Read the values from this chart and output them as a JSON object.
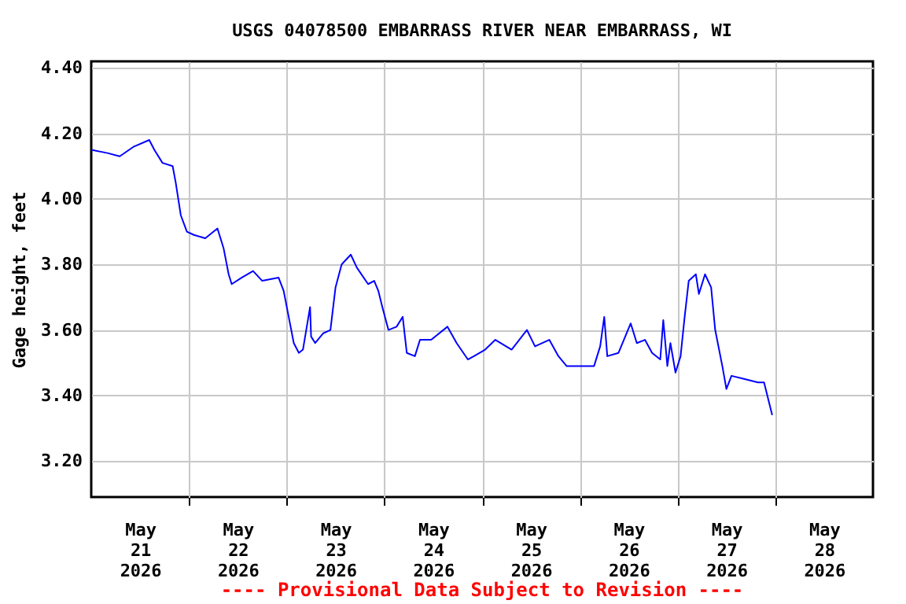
{
  "chart_data": {
    "type": "line",
    "title": "USGS 04078500 EMBARRASS RIVER NEAR EMBARRASS, WI",
    "ylabel": "Gage height, feet",
    "annotations": [
      "---- Provisional Data Subject to Revision ----"
    ],
    "x": [
      "2026-05-21T00:00",
      "2026-05-21T04:00",
      "2026-05-21T07:00",
      "2026-05-21T10:30",
      "2026-05-21T14:15",
      "2026-05-21T15:30",
      "2026-05-21T17:30",
      "2026-05-21T20:00",
      "2026-05-21T20:45",
      "2026-05-21T22:00",
      "2026-05-21T23:30",
      "2026-05-22T01:15",
      "2026-05-22T04:00",
      "2026-05-22T07:00",
      "2026-05-22T08:30",
      "2026-05-22T09:45",
      "2026-05-22T10:30",
      "2026-05-22T13:00",
      "2026-05-22T15:45",
      "2026-05-22T18:00",
      "2026-05-22T22:00",
      "2026-05-22T23:15",
      "2026-05-23T00:30",
      "2026-05-23T01:45",
      "2026-05-23T03:00",
      "2026-05-23T04:00",
      "2026-05-23T05:45",
      "2026-05-23T06:00",
      "2026-05-23T07:00",
      "2026-05-23T09:00",
      "2026-05-23T10:45",
      "2026-05-23T12:00",
      "2026-05-23T13:30",
      "2026-05-23T15:45",
      "2026-05-23T17:15",
      "2026-05-23T20:00",
      "2026-05-23T21:30",
      "2026-05-23T22:30",
      "2026-05-23T23:30",
      "2026-05-24T01:00",
      "2026-05-24T03:00",
      "2026-05-24T04:30",
      "2026-05-24T05:30",
      "2026-05-24T07:30",
      "2026-05-24T08:45",
      "2026-05-24T11:30",
      "2026-05-24T15:30",
      "2026-05-24T17:45",
      "2026-05-24T20:30",
      "2026-05-24T22:00",
      "2026-05-25T00:45",
      "2026-05-25T03:15",
      "2026-05-25T07:15",
      "2026-05-25T11:00",
      "2026-05-25T13:00",
      "2026-05-25T16:30",
      "2026-05-25T18:45",
      "2026-05-25T20:45",
      "2026-05-26T00:00",
      "2026-05-26T03:30",
      "2026-05-26T05:00",
      "2026-05-26T06:00",
      "2026-05-26T06:45",
      "2026-05-26T09:30",
      "2026-05-26T12:30",
      "2026-05-26T14:00",
      "2026-05-26T16:00",
      "2026-05-26T17:45",
      "2026-05-26T19:45",
      "2026-05-26T20:30",
      "2026-05-26T21:30",
      "2026-05-26T22:15",
      "2026-05-26T23:30",
      "2026-05-27T00:45",
      "2026-05-27T01:45",
      "2026-05-27T02:45",
      "2026-05-27T04:30",
      "2026-05-27T05:15",
      "2026-05-27T06:45",
      "2026-05-27T08:15",
      "2026-05-27T09:15",
      "2026-05-27T11:00",
      "2026-05-27T12:00",
      "2026-05-27T13:15",
      "2026-05-27T16:30",
      "2026-05-27T19:45",
      "2026-05-27T21:15",
      "2026-05-27T22:15",
      "2026-05-27T23:15"
    ],
    "series": [
      {
        "color": "#0000ff",
        "values": [
          4.15,
          4.14,
          4.13,
          4.16,
          4.18,
          4.15,
          4.11,
          4.1,
          4.05,
          3.95,
          3.9,
          3.89,
          3.88,
          3.91,
          3.85,
          3.77,
          3.74,
          3.76,
          3.78,
          3.75,
          3.76,
          3.72,
          3.64,
          3.56,
          3.53,
          3.54,
          3.67,
          3.58,
          3.56,
          3.59,
          3.6,
          3.73,
          3.8,
          3.83,
          3.79,
          3.74,
          3.75,
          3.72,
          3.67,
          3.6,
          3.61,
          3.64,
          3.53,
          3.52,
          3.57,
          3.57,
          3.61,
          3.56,
          3.51,
          3.52,
          3.54,
          3.57,
          3.54,
          3.6,
          3.55,
          3.57,
          3.52,
          3.49,
          3.49,
          3.49,
          3.55,
          3.64,
          3.52,
          3.53,
          3.62,
          3.56,
          3.57,
          3.53,
          3.51,
          3.63,
          3.49,
          3.56,
          3.47,
          3.52,
          3.64,
          3.75,
          3.77,
          3.71,
          3.77,
          3.73,
          3.6,
          3.49,
          3.42,
          3.46,
          3.45,
          3.44,
          3.44,
          3.39,
          3.34
        ]
      }
    ],
    "xlim": [
      "2026-05-21T00:00",
      "2026-05-29T00:00"
    ],
    "xticks": [
      {
        "value": "2026-05-22T00:00",
        "label": null
      },
      {
        "value": "2026-05-23T00:00",
        "label": null
      },
      {
        "value": "2026-05-24T00:00",
        "label": null
      },
      {
        "value": "2026-05-25T00:00",
        "label": null
      },
      {
        "value": "2026-05-26T00:00",
        "label": null
      },
      {
        "value": "2026-05-27T00:00",
        "label": null
      },
      {
        "value": "2026-05-28T00:00",
        "label": null
      },
      {
        "value": "2026-05-21T12:00",
        "label": "May\n21\n2026"
      },
      {
        "value": "2026-05-22T12:00",
        "label": "May\n22\n2026"
      },
      {
        "value": "2026-05-23T12:00",
        "label": "May\n23\n2026"
      },
      {
        "value": "2026-05-24T12:00",
        "label": "May\n24\n2026"
      },
      {
        "value": "2026-05-25T12:00",
        "label": "May\n25\n2026"
      },
      {
        "value": "2026-05-26T12:00",
        "label": "May\n26\n2026"
      },
      {
        "value": "2026-05-27T12:00",
        "label": "May\n27\n2026"
      },
      {
        "value": "2026-05-28T12:00",
        "label": "May\n28\n2026"
      }
    ],
    "ylim": [
      3.09,
      4.42
    ],
    "yticks": [
      {
        "value": 3.2,
        "label": "3.20"
      },
      {
        "value": 3.4,
        "label": "3.40"
      },
      {
        "value": 3.6,
        "label": "3.60"
      },
      {
        "value": 3.8,
        "label": "3.80"
      },
      {
        "value": 4.0,
        "label": "4.00"
      },
      {
        "value": 4.2,
        "label": "4.20"
      },
      {
        "value": 4.4,
        "label": "4.40"
      }
    ],
    "grid": true,
    "marker": "none",
    "line_style": "solid"
  }
}
